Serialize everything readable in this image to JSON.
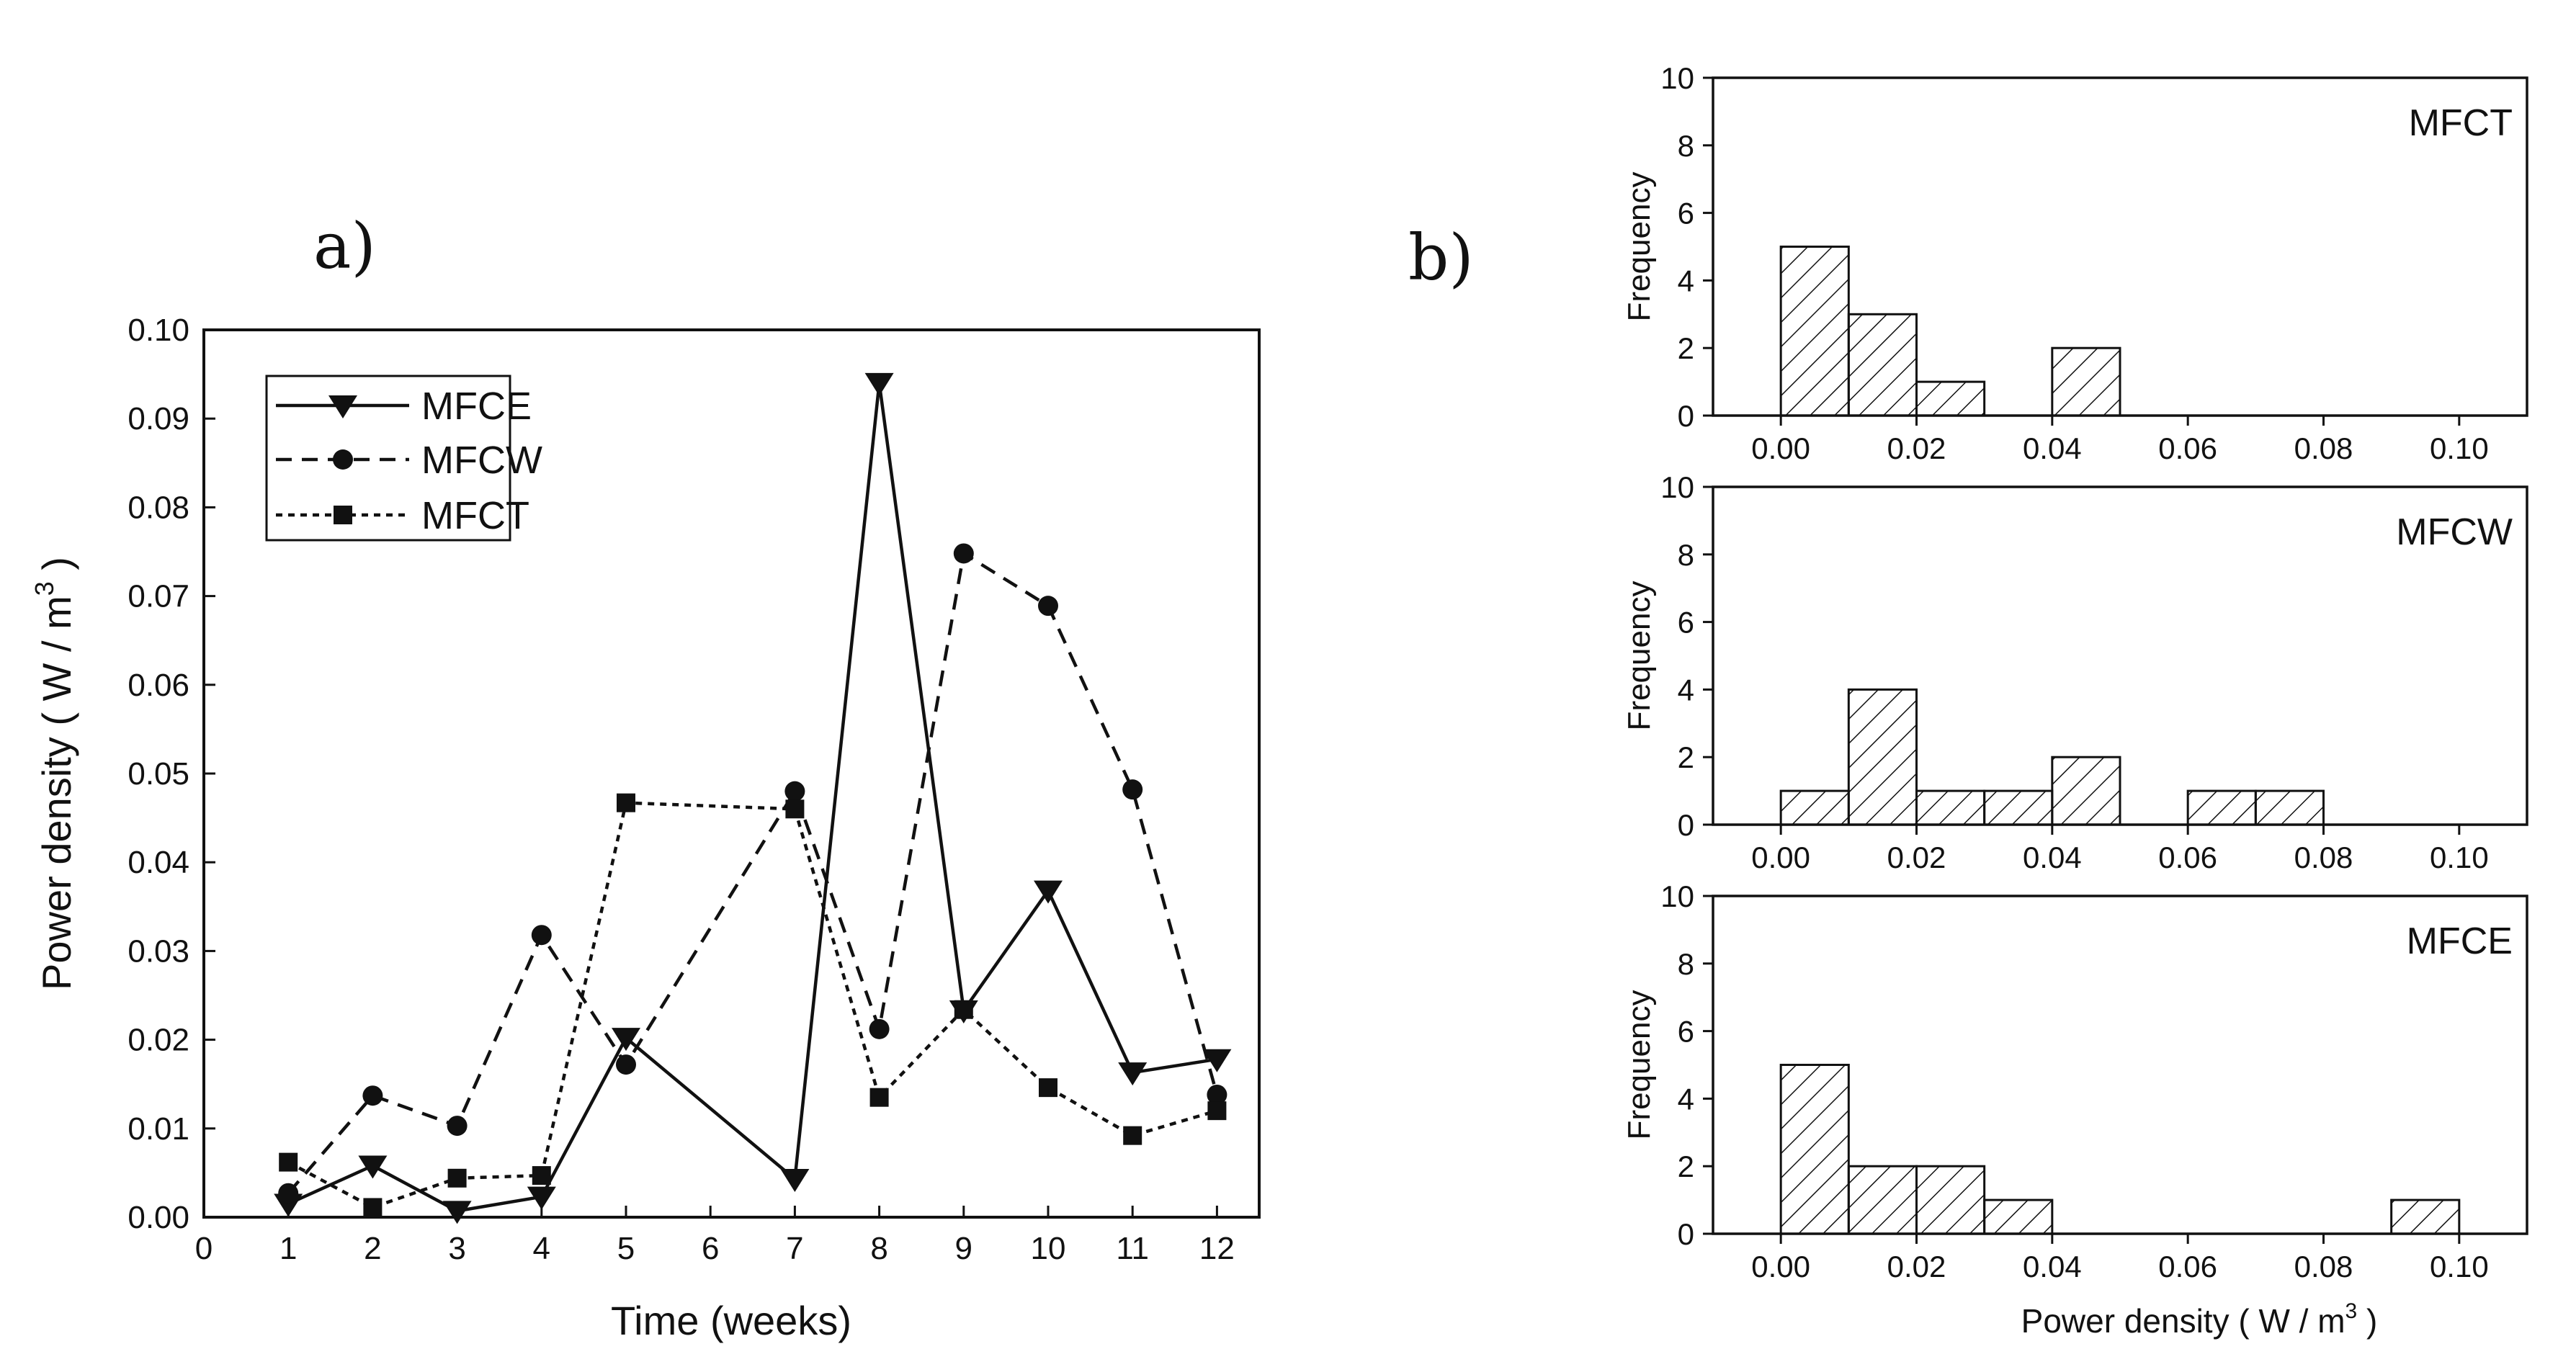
{
  "colors": {
    "ink": "#111111",
    "background": "#ffffff",
    "hatch": "#111111"
  },
  "chart_data": [
    {
      "type": "line",
      "panel_label": "a)",
      "title": "",
      "xlabel": "Time (weeks)",
      "ylabel_main": "Power density ( W / m",
      "ylabel_sup": "3",
      "ylabel_end": " )",
      "xlim": [
        0,
        12.5
      ],
      "ylim": [
        0,
        0.1
      ],
      "x_ticks": [
        "0",
        "1",
        "2",
        "3",
        "4",
        "5",
        "6",
        "7",
        "8",
        "9",
        "10",
        "11",
        "12"
      ],
      "y_ticks": [
        "0.00",
        "0.01",
        "0.02",
        "0.03",
        "0.04",
        "0.05",
        "0.06",
        "0.07",
        "0.08",
        "0.09",
        "0.10"
      ],
      "legend_position": "top-left",
      "series": [
        {
          "name": "MFCE",
          "style": "solid",
          "marker": "triangle-down",
          "x": [
            1,
            2,
            3,
            4,
            5,
            7,
            8,
            9,
            10,
            11,
            12
          ],
          "values": [
            0.0015,
            0.0058,
            0.0007,
            0.0023,
            0.0202,
            0.0043,
            0.094,
            0.0233,
            0.0368,
            0.0163,
            0.0178
          ]
        },
        {
          "name": "MFCW",
          "style": "dashed",
          "marker": "circle",
          "x": [
            1,
            2,
            3,
            4,
            5,
            7,
            8,
            9,
            10,
            11,
            12
          ],
          "values": [
            0.0027,
            0.0137,
            0.0103,
            0.0318,
            0.0172,
            0.048,
            0.0212,
            0.0748,
            0.0689,
            0.0482,
            0.0138
          ]
        },
        {
          "name": "MFCT",
          "style": "dotted",
          "marker": "square",
          "x": [
            1,
            2,
            3,
            4,
            5,
            7,
            8,
            9,
            10,
            11,
            12
          ],
          "values": [
            0.0062,
            0.0011,
            0.0044,
            0.0047,
            0.0467,
            0.046,
            0.0135,
            0.0234,
            0.0146,
            0.0092,
            0.012
          ]
        }
      ]
    },
    {
      "type": "bar",
      "panel_label": "b)",
      "title": "MFCT",
      "xlabel": "",
      "ylabel": "Frequency",
      "xlim": [
        -0.01,
        0.11
      ],
      "ylim": [
        0,
        10
      ],
      "x_ticks": [
        "0.00",
        "0.02",
        "0.04",
        "0.06",
        "0.08",
        "0.10"
      ],
      "y_ticks": [
        "0",
        "2",
        "4",
        "6",
        "8",
        "10"
      ],
      "bins": [
        [
          0.0,
          0.01
        ],
        [
          0.01,
          0.02
        ],
        [
          0.02,
          0.03
        ],
        [
          0.04,
          0.05
        ]
      ],
      "values": [
        5,
        3,
        1,
        2
      ]
    },
    {
      "type": "bar",
      "title": "MFCW",
      "xlabel": "",
      "ylabel": "Frequency",
      "xlim": [
        -0.01,
        0.11
      ],
      "ylim": [
        0,
        10
      ],
      "x_ticks": [
        "0.00",
        "0.02",
        "0.04",
        "0.06",
        "0.08",
        "0.10"
      ],
      "y_ticks": [
        "0",
        "2",
        "4",
        "6",
        "8",
        "10"
      ],
      "bins": [
        [
          0.0,
          0.01
        ],
        [
          0.01,
          0.02
        ],
        [
          0.02,
          0.03
        ],
        [
          0.03,
          0.04
        ],
        [
          0.04,
          0.05
        ],
        [
          0.06,
          0.07
        ],
        [
          0.07,
          0.08
        ]
      ],
      "values": [
        1,
        4,
        1,
        1,
        2,
        1,
        1
      ]
    },
    {
      "type": "bar",
      "title": "MFCE",
      "xlabel_main": "Power density ( W / m",
      "xlabel_sup": "3",
      "xlabel_end": " )",
      "ylabel": "Frequency",
      "xlim": [
        -0.01,
        0.11
      ],
      "ylim": [
        0,
        10
      ],
      "x_ticks": [
        "0.00",
        "0.02",
        "0.04",
        "0.06",
        "0.08",
        "0.10"
      ],
      "y_ticks": [
        "0",
        "2",
        "4",
        "6",
        "8",
        "10"
      ],
      "bins": [
        [
          0.0,
          0.01
        ],
        [
          0.01,
          0.02
        ],
        [
          0.02,
          0.03
        ],
        [
          0.03,
          0.04
        ],
        [
          0.09,
          0.1
        ]
      ],
      "values": [
        5,
        2,
        2,
        1,
        1
      ]
    }
  ]
}
